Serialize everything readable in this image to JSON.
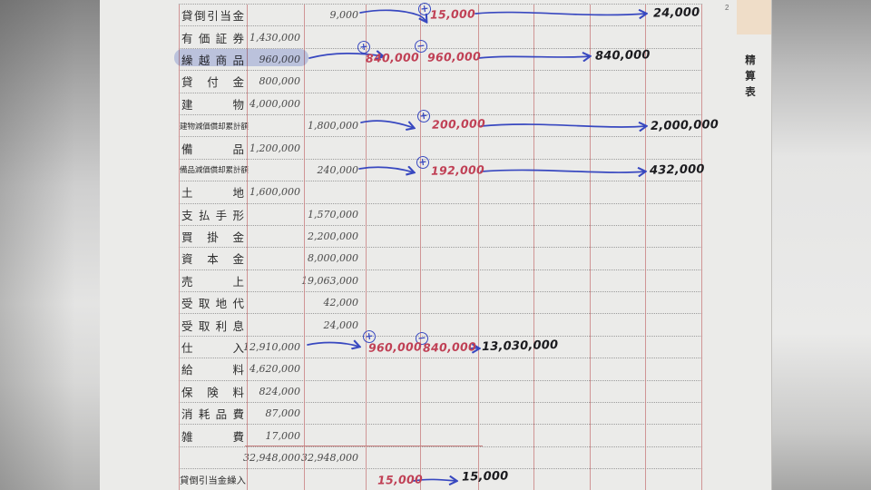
{
  "page_tab": {
    "page_marker": "2",
    "tab_label": "精算表"
  },
  "icons": {
    "plus": "+",
    "minus": "−"
  },
  "table": {
    "rows": [
      {
        "name": "貸倒引当金",
        "debit": "",
        "credit": "9,000"
      },
      {
        "name": "有価証券",
        "debit": "1,430,000",
        "credit": ""
      },
      {
        "name": "繰越商品",
        "debit": "960,000",
        "credit": "",
        "highlight": true
      },
      {
        "name": "貸付金",
        "debit": "800,000",
        "credit": ""
      },
      {
        "name": "建物",
        "debit": "4,000,000",
        "credit": ""
      },
      {
        "name": "建物減価償却累計額",
        "debit": "",
        "credit": "1,800,000"
      },
      {
        "name": "備品",
        "debit": "1,200,000",
        "credit": ""
      },
      {
        "name": "備品減価償却累計額",
        "debit": "",
        "credit": "240,000"
      },
      {
        "name": "土地",
        "debit": "1,600,000",
        "credit": ""
      },
      {
        "name": "支払手形",
        "debit": "",
        "credit": "1,570,000"
      },
      {
        "name": "買掛金",
        "debit": "",
        "credit": "2,200,000"
      },
      {
        "name": "資本金",
        "debit": "",
        "credit": "8,000,000"
      },
      {
        "name": "売上",
        "debit": "",
        "credit": "19,063,000"
      },
      {
        "name": "受取地代",
        "debit": "",
        "credit": "42,000"
      },
      {
        "name": "受取利息",
        "debit": "",
        "credit": "24,000"
      },
      {
        "name": "仕入",
        "debit": "12,910,000",
        "credit": ""
      },
      {
        "name": "給料",
        "debit": "4,620,000",
        "credit": ""
      },
      {
        "name": "保険料",
        "debit": "824,000",
        "credit": ""
      },
      {
        "name": "消耗品費",
        "debit": "87,000",
        "credit": ""
      },
      {
        "name": "雑費",
        "debit": "17,000",
        "credit": ""
      },
      {
        "name": "",
        "debit": "32,948,000",
        "credit": "32,948,000",
        "total": true
      },
      {
        "name": "貸倒引当金繰入",
        "debit": "",
        "credit": ""
      }
    ]
  },
  "annotations": {
    "row1": {
      "plus_value": "15,000",
      "result": "24,000"
    },
    "row3": {
      "plus_value": "840,000",
      "minus_value": "960,000",
      "result": "840,000"
    },
    "row6": {
      "plus_value": "200,000",
      "result": "2,000,000"
    },
    "row8": {
      "plus_value": "192,000",
      "result": "432,000"
    },
    "row16": {
      "plus_value": "960,000",
      "minus_value": "840,000",
      "result": "13,030,000"
    },
    "row22": {
      "adj_value": "15,000",
      "result": "15,000"
    }
  }
}
